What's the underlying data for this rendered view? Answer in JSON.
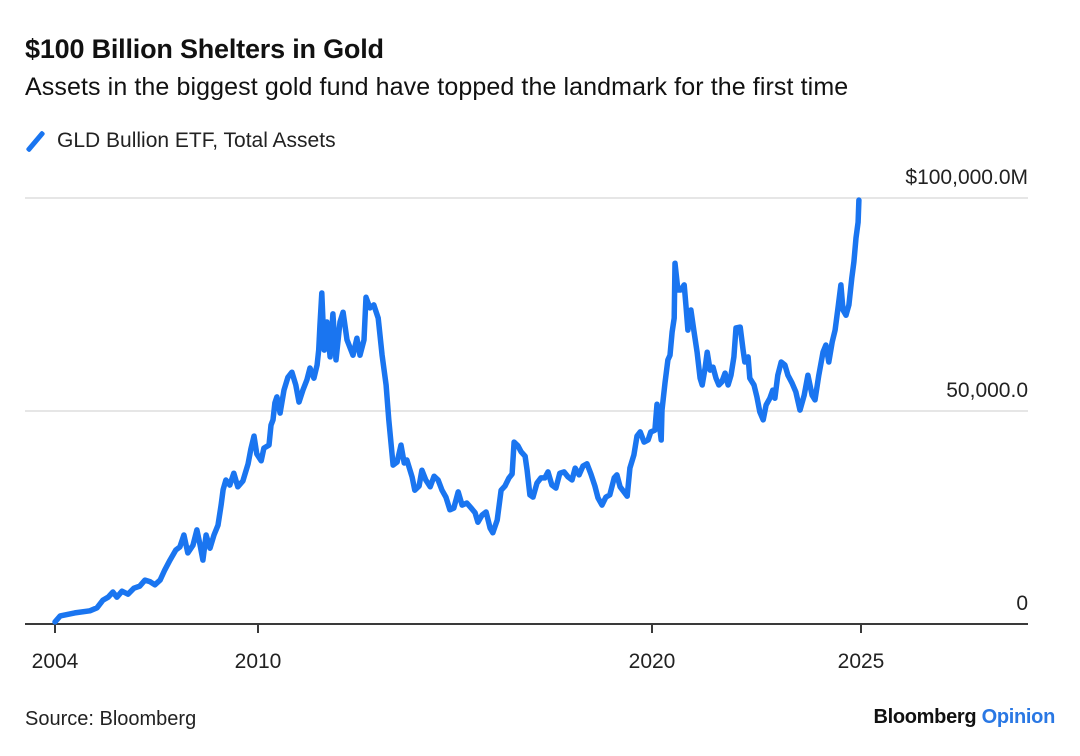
{
  "header": {
    "title": "$100 Billion Shelters in Gold",
    "subtitle": "Assets in the biggest gold fund have topped the landmark for the first time"
  },
  "legend": {
    "items": [
      {
        "label": "GLD Bullion ETF, Total Assets",
        "icon": "diagonal-line-swatch",
        "color": "#1a75f0"
      }
    ]
  },
  "footer": {
    "source": "Source: Bloomberg",
    "brand_main": "Bloomberg",
    "brand_accent": "Opinion",
    "brand_accent_color": "#2a78e4"
  },
  "chart_data": {
    "type": "line",
    "title": "$100 Billion Shelters in Gold",
    "subtitle": "Assets in the biggest gold fund have topped the landmark for the first time",
    "xlabel": "",
    "ylabel": "",
    "units": "$ millions",
    "x_ticks": [
      {
        "value": 2004.88,
        "label": "2004"
      },
      {
        "value": 2010,
        "label": "2010"
      },
      {
        "value": 2020,
        "label": "2020"
      },
      {
        "value": 2025,
        "label": "2025"
      }
    ],
    "y_ticks": [
      {
        "value": 0,
        "label": "0"
      },
      {
        "value": 50000,
        "label": "50,000.0"
      },
      {
        "value": 100000,
        "label": "$100,000.0M"
      }
    ],
    "ylim": [
      0,
      100000
    ],
    "xlim": [
      2004.88,
      2025
    ],
    "grid": true,
    "legend_position": "top-left",
    "series": [
      {
        "name": "GLD Bullion ETF, Total Assets",
        "color": "#1a75f0",
        "points": [
          [
            2004.88,
            500
          ],
          [
            2005.01,
            1900
          ],
          [
            2005.38,
            2600
          ],
          [
            2005.76,
            3100
          ],
          [
            2005.94,
            3800
          ],
          [
            2006.09,
            5600
          ],
          [
            2006.22,
            6300
          ],
          [
            2006.34,
            7500
          ],
          [
            2006.44,
            6300
          ],
          [
            2006.57,
            7700
          ],
          [
            2006.72,
            7000
          ],
          [
            2006.87,
            8400
          ],
          [
            2007.02,
            8900
          ],
          [
            2007.15,
            10300
          ],
          [
            2007.28,
            9900
          ],
          [
            2007.4,
            9200
          ],
          [
            2007.53,
            10300
          ],
          [
            2007.65,
            12700
          ],
          [
            2007.78,
            15000
          ],
          [
            2007.93,
            17400
          ],
          [
            2008.03,
            18100
          ],
          [
            2008.13,
            20900
          ],
          [
            2008.23,
            16700
          ],
          [
            2008.36,
            18500
          ],
          [
            2008.46,
            22100
          ],
          [
            2008.54,
            18500
          ],
          [
            2008.61,
            15000
          ],
          [
            2008.69,
            20900
          ],
          [
            2008.79,
            17800
          ],
          [
            2008.89,
            20900
          ],
          [
            2008.99,
            23200
          ],
          [
            2009.07,
            27900
          ],
          [
            2009.12,
            31500
          ],
          [
            2009.19,
            33800
          ],
          [
            2009.29,
            32600
          ],
          [
            2009.39,
            35400
          ],
          [
            2009.49,
            32200
          ],
          [
            2009.62,
            33600
          ],
          [
            2009.75,
            37600
          ],
          [
            2009.82,
            41100
          ],
          [
            2009.9,
            44100
          ],
          [
            2009.97,
            39900
          ],
          [
            2010.08,
            38300
          ],
          [
            2010.15,
            41300
          ],
          [
            2010.28,
            42000
          ],
          [
            2010.33,
            46700
          ],
          [
            2010.38,
            47900
          ],
          [
            2010.43,
            51900
          ],
          [
            2010.48,
            53300
          ],
          [
            2010.56,
            49500
          ],
          [
            2010.66,
            54900
          ],
          [
            2010.76,
            57900
          ],
          [
            2010.86,
            59100
          ],
          [
            2010.96,
            56100
          ],
          [
            2011.04,
            52100
          ],
          [
            2011.14,
            54900
          ],
          [
            2011.24,
            57300
          ],
          [
            2011.32,
            60100
          ],
          [
            2011.42,
            57700
          ],
          [
            2011.5,
            60800
          ],
          [
            2011.54,
            64300
          ],
          [
            2011.57,
            69900
          ],
          [
            2011.62,
            77700
          ],
          [
            2011.68,
            64300
          ],
          [
            2011.75,
            70900
          ],
          [
            2011.83,
            62700
          ],
          [
            2011.9,
            72800
          ],
          [
            2011.98,
            62000
          ],
          [
            2012.08,
            70900
          ],
          [
            2012.16,
            73200
          ],
          [
            2012.26,
            66700
          ],
          [
            2012.41,
            63100
          ],
          [
            2012.51,
            67100
          ],
          [
            2012.59,
            63100
          ],
          [
            2012.69,
            66700
          ],
          [
            2012.74,
            76700
          ],
          [
            2012.84,
            74200
          ],
          [
            2012.94,
            74900
          ],
          [
            2013.05,
            71800
          ],
          [
            2013.15,
            63100
          ],
          [
            2013.25,
            56100
          ],
          [
            2013.32,
            47900
          ],
          [
            2013.43,
            37300
          ],
          [
            2013.53,
            38000
          ],
          [
            2013.63,
            42000
          ],
          [
            2013.71,
            37800
          ],
          [
            2013.78,
            38500
          ],
          [
            2013.91,
            34500
          ],
          [
            2013.98,
            31400
          ],
          [
            2014.09,
            32400
          ],
          [
            2014.16,
            36100
          ],
          [
            2014.26,
            33800
          ],
          [
            2014.37,
            32200
          ],
          [
            2014.47,
            34700
          ],
          [
            2014.57,
            33800
          ],
          [
            2014.67,
            31400
          ],
          [
            2014.77,
            29800
          ],
          [
            2014.87,
            26800
          ],
          [
            2014.97,
            27200
          ],
          [
            2015.08,
            31000
          ],
          [
            2015.18,
            27900
          ],
          [
            2015.3,
            28400
          ],
          [
            2015.41,
            27200
          ],
          [
            2015.51,
            26100
          ],
          [
            2015.58,
            23900
          ],
          [
            2015.69,
            25600
          ],
          [
            2015.79,
            26300
          ],
          [
            2015.89,
            22500
          ],
          [
            2015.96,
            21400
          ],
          [
            2016.07,
            24400
          ],
          [
            2016.17,
            31400
          ],
          [
            2016.27,
            32400
          ],
          [
            2016.37,
            34300
          ],
          [
            2016.45,
            35200
          ],
          [
            2016.5,
            42700
          ],
          [
            2016.6,
            41800
          ],
          [
            2016.68,
            40400
          ],
          [
            2016.78,
            39400
          ],
          [
            2016.83,
            36100
          ],
          [
            2016.9,
            30300
          ],
          [
            2016.98,
            29800
          ],
          [
            2017.08,
            33100
          ],
          [
            2017.18,
            34300
          ],
          [
            2017.28,
            34300
          ],
          [
            2017.36,
            35700
          ],
          [
            2017.46,
            32600
          ],
          [
            2017.56,
            31900
          ],
          [
            2017.66,
            35400
          ],
          [
            2017.77,
            35700
          ],
          [
            2017.87,
            34500
          ],
          [
            2017.97,
            33800
          ],
          [
            2018.05,
            36600
          ],
          [
            2018.15,
            35000
          ],
          [
            2018.25,
            37100
          ],
          [
            2018.35,
            37600
          ],
          [
            2018.45,
            35200
          ],
          [
            2018.55,
            32400
          ],
          [
            2018.63,
            29600
          ],
          [
            2018.73,
            27900
          ],
          [
            2018.83,
            29800
          ],
          [
            2018.93,
            30300
          ],
          [
            2019.04,
            34300
          ],
          [
            2019.11,
            35000
          ],
          [
            2019.19,
            32200
          ],
          [
            2019.29,
            31000
          ],
          [
            2019.37,
            30000
          ],
          [
            2019.44,
            36600
          ],
          [
            2019.54,
            39700
          ],
          [
            2019.62,
            44100
          ],
          [
            2019.7,
            45100
          ],
          [
            2019.8,
            42700
          ],
          [
            2019.9,
            43200
          ],
          [
            2019.97,
            45100
          ],
          [
            2020.07,
            45500
          ],
          [
            2020.12,
            51600
          ],
          [
            2020.22,
            43200
          ],
          [
            2020.24,
            50200
          ],
          [
            2020.31,
            56600
          ],
          [
            2020.38,
            62000
          ],
          [
            2020.43,
            63100
          ],
          [
            2020.48,
            68500
          ],
          [
            2020.53,
            71800
          ],
          [
            2020.55,
            84700
          ],
          [
            2020.62,
            78400
          ],
          [
            2020.69,
            78400
          ],
          [
            2020.77,
            79600
          ],
          [
            2020.81,
            74900
          ],
          [
            2020.86,
            69000
          ],
          [
            2020.93,
            73700
          ],
          [
            2021.0,
            69000
          ],
          [
            2021.08,
            63800
          ],
          [
            2021.15,
            57700
          ],
          [
            2021.2,
            56100
          ],
          [
            2021.27,
            60100
          ],
          [
            2021.32,
            63800
          ],
          [
            2021.39,
            59600
          ],
          [
            2021.46,
            60300
          ],
          [
            2021.53,
            57700
          ],
          [
            2021.6,
            56100
          ],
          [
            2021.67,
            56800
          ],
          [
            2021.75,
            58900
          ],
          [
            2021.82,
            56100
          ],
          [
            2021.89,
            58400
          ],
          [
            2021.96,
            62700
          ],
          [
            2022.01,
            69500
          ],
          [
            2022.11,
            69700
          ],
          [
            2022.18,
            64300
          ],
          [
            2022.22,
            61500
          ],
          [
            2022.3,
            62700
          ],
          [
            2022.34,
            57700
          ],
          [
            2022.44,
            56100
          ],
          [
            2022.51,
            53300
          ],
          [
            2022.58,
            49800
          ],
          [
            2022.66,
            47900
          ],
          [
            2022.73,
            51400
          ],
          [
            2022.82,
            53000
          ],
          [
            2022.89,
            54900
          ],
          [
            2022.94,
            53000
          ],
          [
            2023.01,
            58400
          ],
          [
            2023.09,
            61500
          ],
          [
            2023.18,
            60800
          ],
          [
            2023.25,
            58400
          ],
          [
            2023.35,
            56600
          ],
          [
            2023.44,
            54500
          ],
          [
            2023.54,
            50200
          ],
          [
            2023.64,
            53700
          ],
          [
            2023.73,
            58400
          ],
          [
            2023.83,
            53700
          ],
          [
            2023.9,
            52600
          ],
          [
            2023.99,
            58400
          ],
          [
            2024.09,
            63800
          ],
          [
            2024.16,
            65500
          ],
          [
            2024.23,
            61500
          ],
          [
            2024.31,
            66200
          ],
          [
            2024.38,
            69000
          ],
          [
            2024.45,
            74200
          ],
          [
            2024.52,
            79600
          ],
          [
            2024.57,
            73700
          ],
          [
            2024.64,
            72500
          ],
          [
            2024.71,
            74900
          ],
          [
            2024.78,
            81200
          ],
          [
            2024.83,
            85000
          ],
          [
            2024.88,
            90600
          ],
          [
            2024.93,
            94300
          ],
          [
            2024.95,
            99500
          ]
        ]
      }
    ]
  }
}
